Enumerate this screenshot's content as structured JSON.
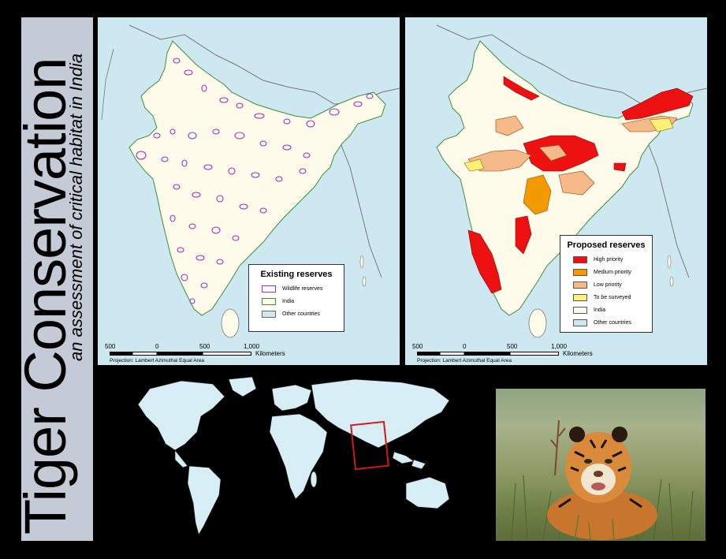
{
  "title": {
    "main": "Tiger Conservation",
    "subtitle": "an assessment of critical habitat in India"
  },
  "left_map": {
    "legend": {
      "title": "Existing reserves",
      "items": [
        {
          "label": "Wildlife reserves",
          "fill": "#ffffff",
          "stroke": "#9b30c9"
        },
        {
          "label": "India",
          "fill": "#fffbea",
          "stroke": "#3a8f3a"
        },
        {
          "label": "Other countries",
          "fill": "#cde8f0",
          "stroke": "#666666"
        }
      ]
    },
    "scale": {
      "ticks": [
        "500",
        "0",
        "500",
        "1,000"
      ],
      "unit": "Kilometers"
    },
    "projection": "Projection: Lambert Azimuthal Equal Area"
  },
  "right_map": {
    "legend": {
      "title": "Proposed reserves",
      "items": [
        {
          "label": "High priority",
          "fill": "#ee1111"
        },
        {
          "label": "Medium priority",
          "fill": "#f29a00"
        },
        {
          "label": "Low priority",
          "fill": "#f5b98a"
        },
        {
          "label": "To be surveyed",
          "fill": "#fff07a"
        },
        {
          "label": "India",
          "fill": "#fffbea"
        },
        {
          "label": "Other countries",
          "fill": "#cde8f0"
        }
      ]
    },
    "scale": {
      "ticks": [
        "500",
        "0",
        "500",
        "1,000"
      ],
      "unit": "Kilometers"
    },
    "projection": "Projection: Lambert Azimuthal Equal Area"
  },
  "world_map": {
    "highlight_color": "#d11919",
    "land_color": "#d8eef6"
  },
  "photo": {
    "subject": "tiger"
  },
  "colors": {
    "background": "#000000",
    "title_panel": "#c4cbd6",
    "ocean": "#cde8f0",
    "india_land": "#fffbea"
  }
}
